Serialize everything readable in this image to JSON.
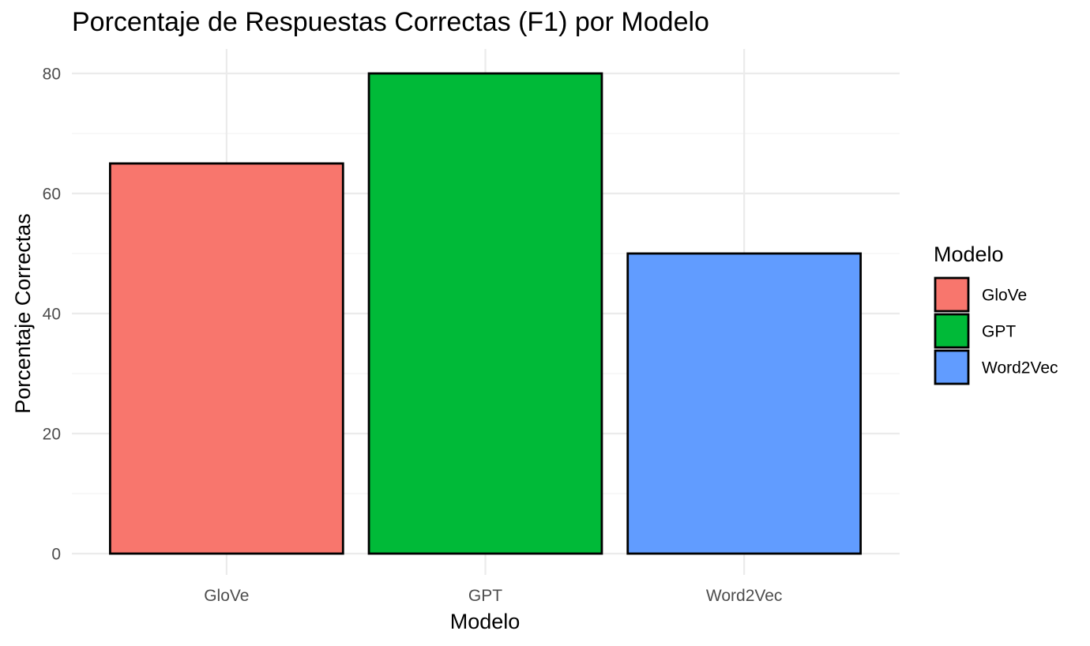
{
  "chart_data": {
    "type": "bar",
    "title": "Porcentaje de Respuestas Correctas (F1) por Modelo",
    "xlabel": "Modelo",
    "ylabel": "Porcentaje Correctas",
    "categories": [
      "GloVe",
      "GPT",
      "Word2Vec"
    ],
    "values": [
      65,
      80,
      50
    ],
    "colors": [
      "#F8766D",
      "#00BA38",
      "#619CFF"
    ],
    "ylim": [
      0,
      80
    ],
    "yticks": [
      0,
      20,
      40,
      60,
      80
    ],
    "ytick_labels": [
      "0",
      "20",
      "40",
      "60",
      "80"
    ],
    "grid": true,
    "legend": {
      "title": "Modelo",
      "placement": "right",
      "entries": [
        "GloVe",
        "GPT",
        "Word2Vec"
      ]
    }
  }
}
